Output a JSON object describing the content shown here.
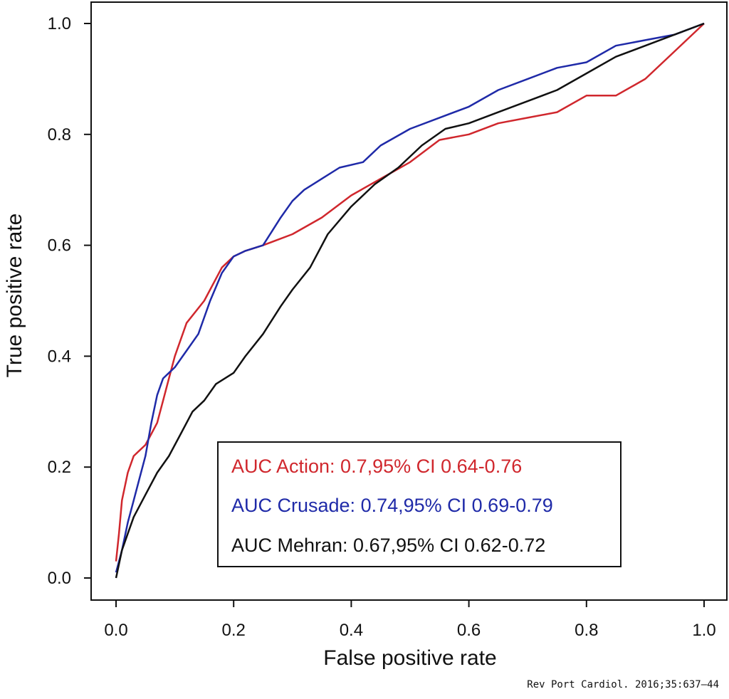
{
  "chart_data": {
    "type": "line",
    "title": "",
    "xlabel": "False positive rate",
    "ylabel": "True positive rate",
    "xlim": [
      0,
      1
    ],
    "ylim": [
      0,
      1
    ],
    "x_ticks": [
      "0.0",
      "0.2",
      "0.4",
      "0.6",
      "0.8",
      "1.0"
    ],
    "y_ticks": [
      "0.0",
      "0.2",
      "0.4",
      "0.6",
      "0.8",
      "1.0"
    ],
    "grid": false,
    "legend_position": "bottom-right",
    "series": [
      {
        "name": "AUC Action: 0.7,95% CI 0.64-0.76",
        "color": "#d0272d",
        "x": [
          0,
          0.005,
          0.01,
          0.02,
          0.03,
          0.04,
          0.05,
          0.06,
          0.07,
          0.08,
          0.09,
          0.1,
          0.12,
          0.15,
          0.18,
          0.2,
          0.22,
          0.25,
          0.3,
          0.35,
          0.4,
          0.45,
          0.5,
          0.55,
          0.6,
          0.65,
          0.7,
          0.75,
          0.8,
          0.85,
          0.9,
          0.95,
          1.0
        ],
        "y": [
          0.03,
          0.08,
          0.14,
          0.19,
          0.22,
          0.23,
          0.24,
          0.26,
          0.28,
          0.32,
          0.36,
          0.4,
          0.46,
          0.5,
          0.56,
          0.58,
          0.59,
          0.6,
          0.62,
          0.65,
          0.69,
          0.72,
          0.75,
          0.79,
          0.8,
          0.82,
          0.83,
          0.84,
          0.87,
          0.87,
          0.9,
          0.95,
          1.0
        ]
      },
      {
        "name": "AUC Crusade: 0.74,95% CI 0.69-0.79",
        "color": "#1f2aa8",
        "x": [
          0,
          0.01,
          0.02,
          0.03,
          0.04,
          0.05,
          0.06,
          0.07,
          0.08,
          0.09,
          0.1,
          0.12,
          0.14,
          0.16,
          0.18,
          0.2,
          0.22,
          0.25,
          0.28,
          0.3,
          0.32,
          0.35,
          0.38,
          0.42,
          0.45,
          0.5,
          0.55,
          0.6,
          0.65,
          0.7,
          0.75,
          0.8,
          0.85,
          0.9,
          0.95,
          1.0
        ],
        "y": [
          0.01,
          0.05,
          0.1,
          0.14,
          0.18,
          0.22,
          0.28,
          0.33,
          0.36,
          0.37,
          0.38,
          0.41,
          0.44,
          0.5,
          0.55,
          0.58,
          0.59,
          0.6,
          0.65,
          0.68,
          0.7,
          0.72,
          0.74,
          0.75,
          0.78,
          0.81,
          0.83,
          0.85,
          0.88,
          0.9,
          0.92,
          0.93,
          0.96,
          0.97,
          0.98,
          1.0
        ]
      },
      {
        "name": "AUC Mehran: 0.67,95% CI 0.62-0.72",
        "color": "#111111",
        "x": [
          0,
          0.01,
          0.02,
          0.03,
          0.05,
          0.07,
          0.09,
          0.11,
          0.13,
          0.15,
          0.17,
          0.2,
          0.22,
          0.25,
          0.28,
          0.3,
          0.33,
          0.36,
          0.4,
          0.44,
          0.48,
          0.52,
          0.56,
          0.6,
          0.65,
          0.7,
          0.75,
          0.8,
          0.85,
          0.9,
          0.95,
          1.0
        ],
        "y": [
          0.0,
          0.05,
          0.08,
          0.11,
          0.15,
          0.19,
          0.22,
          0.26,
          0.3,
          0.32,
          0.35,
          0.37,
          0.4,
          0.44,
          0.49,
          0.52,
          0.56,
          0.62,
          0.67,
          0.71,
          0.74,
          0.78,
          0.81,
          0.82,
          0.84,
          0.86,
          0.88,
          0.91,
          0.94,
          0.96,
          0.98,
          1.0
        ]
      }
    ],
    "source": "Rev Port Cardiol. 2016;35:637–44"
  }
}
